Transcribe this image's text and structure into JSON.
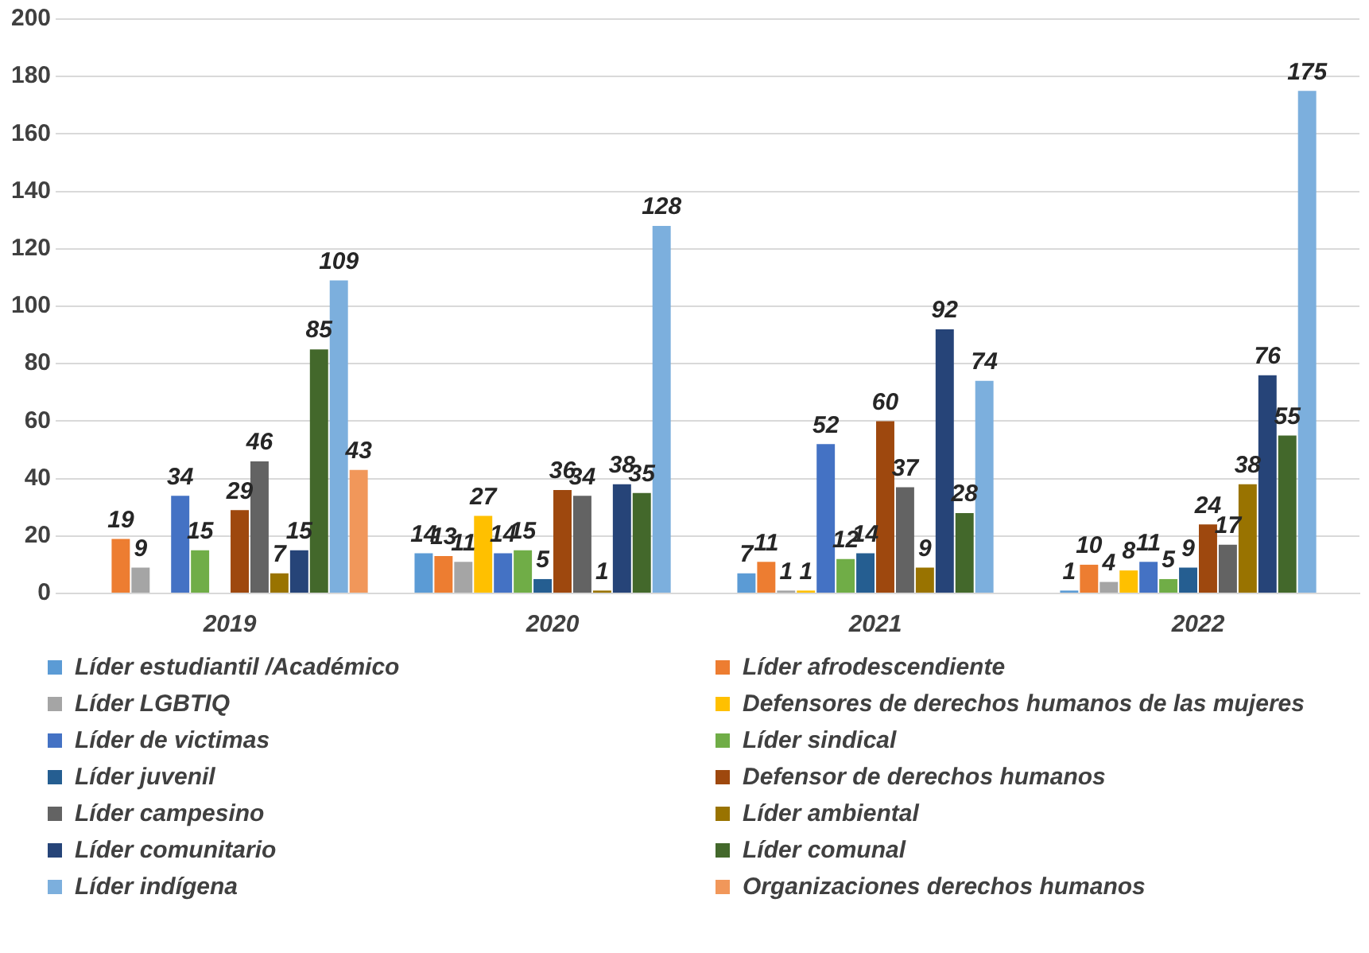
{
  "chart_data": {
    "type": "bar",
    "categories": [
      "2019",
      "2020",
      "2021",
      "2022"
    ],
    "ylim": [
      0,
      200
    ],
    "yticks": [
      0,
      20,
      40,
      60,
      80,
      100,
      120,
      140,
      160,
      180,
      200
    ],
    "grid": "y",
    "legend": "bottom",
    "data_labels": true,
    "series": [
      {
        "name": "Líder estudiantil /Académico",
        "color": "#5b9bd5",
        "values": [
          null,
          14,
          7,
          1
        ]
      },
      {
        "name": "Líder afrodescendiente",
        "color": "#ed7d31",
        "values": [
          19,
          13,
          11,
          10
        ]
      },
      {
        "name": "Líder LGBTIQ",
        "color": "#a5a5a5",
        "values": [
          9,
          11,
          1,
          4
        ]
      },
      {
        "name": "Defensores de derechos humanos de las mujeres",
        "color": "#ffc000",
        "values": [
          null,
          27,
          1,
          8
        ]
      },
      {
        "name": "Líder de victimas",
        "color": "#4472c4",
        "values": [
          34,
          14,
          52,
          11
        ]
      },
      {
        "name": "Líder sindical",
        "color": "#70ad47",
        "values": [
          15,
          15,
          12,
          5
        ]
      },
      {
        "name": "Líder juvenil",
        "color": "#255e91",
        "values": [
          null,
          5,
          14,
          9
        ]
      },
      {
        "name": "Defensor de derechos humanos",
        "color": "#9e480e",
        "values": [
          29,
          36,
          60,
          24
        ]
      },
      {
        "name": "Líder campesino",
        "color": "#636363",
        "values": [
          46,
          34,
          37,
          17
        ]
      },
      {
        "name": "Líder ambiental",
        "color": "#997300",
        "values": [
          7,
          1,
          9,
          38
        ]
      },
      {
        "name": "Líder comunitario",
        "color": "#264478",
        "values": [
          15,
          38,
          92,
          76
        ]
      },
      {
        "name": "Líder comunal",
        "color": "#43682b",
        "values": [
          85,
          35,
          28,
          55
        ]
      },
      {
        "name": "Líder indígena",
        "color": "#7cafdd",
        "values": [
          109,
          128,
          74,
          175
        ]
      },
      {
        "name": "Organizaciones derechos humanos",
        "color": "#f1975a",
        "values": [
          43,
          null,
          null,
          null
        ]
      }
    ]
  }
}
